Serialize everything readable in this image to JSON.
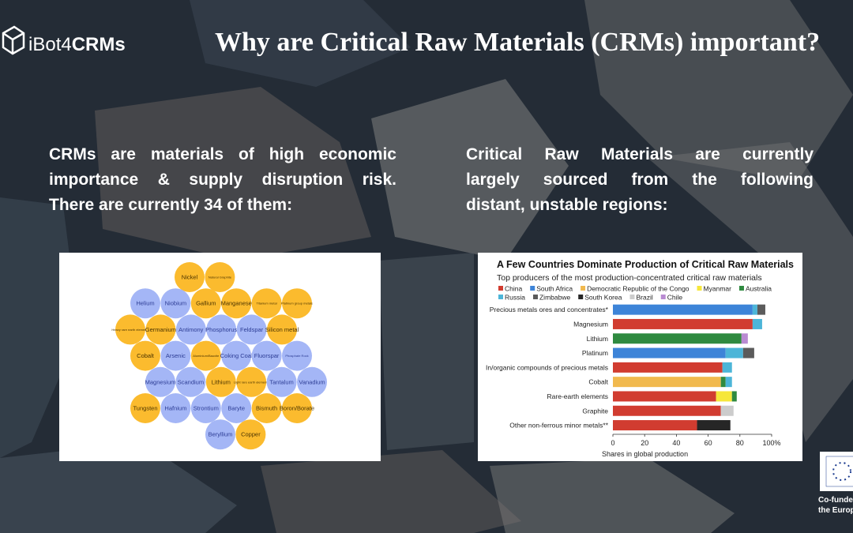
{
  "logo": {
    "prefix": "iBot4",
    "suffix": "CRMs"
  },
  "title": "Why are Critical Raw Materials (CRMs) important?",
  "left_text": {
    "lines": [
      "CRMs are materials of high economic",
      "importance & supply disruption risk.",
      "There are currently 34 of them:"
    ]
  },
  "right_text": {
    "lines": [
      "Critical Raw Materials are currently",
      "largely sourced from the following",
      "distant, unstable regions:"
    ]
  },
  "bubbles": {
    "colors": {
      "orange": "#fbbb2e",
      "blue": "#a4b6f6"
    },
    "rows": [
      [
        {
          "label": "Nickel",
          "color": "orange"
        },
        {
          "label": "Natural Graphite",
          "color": "orange"
        }
      ],
      [
        {
          "label": "Helium",
          "color": "blue"
        },
        {
          "label": "Niobium",
          "color": "blue"
        },
        {
          "label": "Gallium",
          "color": "orange"
        },
        {
          "label": "Manganese",
          "color": "orange"
        },
        {
          "label": "Titanium metal",
          "color": "orange"
        },
        {
          "label": "Platinum group metals",
          "color": "orange"
        }
      ],
      [
        {
          "label": "Heavy rare earth elements",
          "color": "orange"
        },
        {
          "label": "Germanium",
          "color": "orange"
        },
        {
          "label": "Antimony",
          "color": "blue"
        },
        {
          "label": "Phosphorus",
          "color": "blue"
        },
        {
          "label": "Feldspar",
          "color": "blue"
        },
        {
          "label": "Silicon metal",
          "color": "orange"
        }
      ],
      [
        {
          "label": "Cobalt",
          "color": "orange"
        },
        {
          "label": "Arsenic",
          "color": "blue"
        },
        {
          "label": "Aluminium/Bauxite",
          "color": "orange"
        },
        {
          "label": "Coking Coal",
          "color": "blue"
        },
        {
          "label": "Fluorspar",
          "color": "blue"
        },
        {
          "label": "Phosphate Rock",
          "color": "blue"
        }
      ],
      [
        {
          "label": "Magnesium",
          "color": "blue"
        },
        {
          "label": "Scandium",
          "color": "blue"
        },
        {
          "label": "Lithium",
          "color": "orange"
        },
        {
          "label": "Light rare earth elements",
          "color": "orange"
        },
        {
          "label": "Tantalum",
          "color": "blue"
        },
        {
          "label": "Vanadium",
          "color": "blue"
        }
      ],
      [
        {
          "label": "Tungsten",
          "color": "orange"
        },
        {
          "label": "Hafnium",
          "color": "blue"
        },
        {
          "label": "Strontium",
          "color": "blue"
        },
        {
          "label": "Baryte",
          "color": "blue"
        },
        {
          "label": "Bismuth",
          "color": "orange"
        },
        {
          "label": "Boron/Borate",
          "color": "orange"
        }
      ],
      [
        {
          "label": "Beryllium",
          "color": "blue"
        },
        {
          "label": "Copper",
          "color": "orange"
        }
      ]
    ]
  },
  "chart_data": {
    "type": "bar",
    "orientation": "horizontal",
    "stacked": true,
    "title": "A Few Countries Dominate Production of Critical Raw Materials",
    "subtitle": "Top producers of the most production-concentrated critical raw materials",
    "x_label": "Shares in global production",
    "categories": [
      "Precious metals ores and concentrates*",
      "Magnesium",
      "Lithium",
      "Platinum",
      "In/organic compounds of precious metals",
      "Cobalt",
      "Rare-earth elements",
      "Graphite",
      "Other non-ferrous minor metals**"
    ],
    "series": [
      {
        "name": "China",
        "color": "#d13c30",
        "values": [
          null,
          88,
          null,
          null,
          69,
          null,
          65,
          68,
          53
        ]
      },
      {
        "name": "South Africa",
        "color": "#3d84d8",
        "values": [
          88,
          null,
          null,
          71,
          null,
          null,
          null,
          null,
          null
        ]
      },
      {
        "name": "Democratic Republic of the Congo",
        "color": "#f1b94e",
        "values": [
          null,
          null,
          null,
          null,
          null,
          68,
          null,
          null,
          null
        ]
      },
      {
        "name": "Myanmar",
        "color": "#f6e73a",
        "values": [
          null,
          null,
          null,
          null,
          null,
          null,
          10,
          null,
          null
        ]
      },
      {
        "name": "Australia",
        "color": "#2f8a40",
        "values": [
          null,
          null,
          81,
          null,
          null,
          3,
          3,
          null,
          null
        ]
      },
      {
        "name": "Russia",
        "color": "#4cb5d8",
        "values": [
          3,
          6,
          null,
          11,
          6,
          4,
          null,
          null,
          null
        ]
      },
      {
        "name": "Zimbabwe",
        "color": "#5b5b5b",
        "values": [
          5,
          null,
          null,
          7,
          null,
          null,
          null,
          null,
          null
        ]
      },
      {
        "name": "South Korea",
        "color": "#262626",
        "values": [
          null,
          null,
          null,
          null,
          null,
          null,
          null,
          null,
          21
        ]
      },
      {
        "name": "Brazil",
        "color": "#cccccc",
        "values": [
          null,
          null,
          null,
          null,
          null,
          null,
          null,
          8,
          null
        ]
      },
      {
        "name": "Chile",
        "color": "#b98bd2",
        "values": [
          null,
          null,
          4,
          null,
          null,
          null,
          null,
          null,
          null
        ]
      }
    ],
    "xlim": [
      0,
      100
    ],
    "xticks": [
      0,
      20,
      40,
      60,
      80,
      {
        "value": 100,
        "label": "100%"
      }
    ]
  },
  "footer": {
    "line1": "Co-funded by",
    "line2": "the European Union"
  }
}
